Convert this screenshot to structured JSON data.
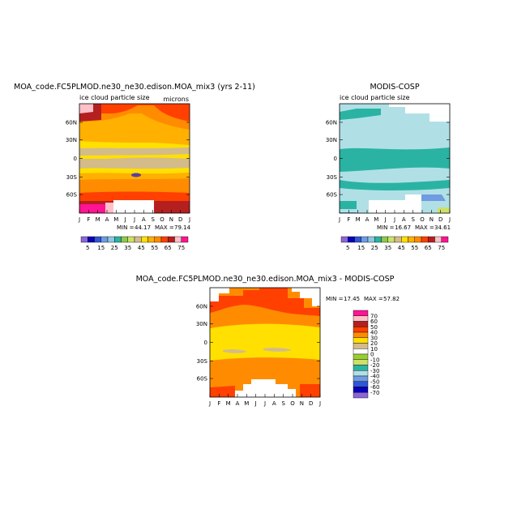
{
  "chart_data": [
    {
      "type": "heatmap",
      "title": "MOA_code.FC5PLMOD.ne30_ne30.edison.MOA_mix3 (yrs 2-11)",
      "subtitle_left": "ice cloud particle size",
      "units": "microns",
      "x_ticks": [
        "J",
        "F",
        "M",
        "A",
        "M",
        "J",
        "J",
        "A",
        "S",
        "O",
        "N",
        "D",
        "J"
      ],
      "y_ticks": [
        "60N",
        "30N",
        "0",
        "30S",
        "60S"
      ],
      "min_label": "MIN =",
      "min": "44.17",
      "max_label": "MAX =",
      "max": "79.14",
      "colorbar_labels": [
        "5",
        "15",
        "25",
        "35",
        "45",
        "55",
        "65",
        "75"
      ],
      "colorbar_colors": [
        "#8c66d9",
        "#0b00b5",
        "#3056d6",
        "#6f9be0",
        "#8fc6e0",
        "#2ab3a3",
        "#8fc84a",
        "#cde06a",
        "#d4bb8a",
        "#ffe000",
        "#ffb000",
        "#ff8c00",
        "#ff4000",
        "#b42020",
        "#ffc0c8",
        "#ff1493"
      ],
      "bands": [
        {
          "range": "65-75",
          "color": "#b42020"
        },
        {
          "range": "60-65",
          "color": "#ff4000"
        },
        {
          "range": "55-60",
          "color": "#ff8c00"
        },
        {
          "range": "50-55",
          "color": "#ffb000"
        },
        {
          "range": "45-50",
          "color": "#ffe000"
        },
        {
          "range": "40-45",
          "color": "#d4bb8a"
        }
      ]
    },
    {
      "type": "heatmap",
      "title": "MODIS-COSP",
      "subtitle_left": "ice cloud particle size",
      "x_ticks": [
        "J",
        "F",
        "M",
        "A",
        "M",
        "J",
        "J",
        "A",
        "S",
        "O",
        "N",
        "D",
        "J"
      ],
      "y_ticks": [
        "60N",
        "30N",
        "0",
        "30S",
        "60S"
      ],
      "min_label": "MIN =",
      "min": "16.67",
      "max_label": "MAX =",
      "max": "34.61",
      "colorbar_labels": [
        "5",
        "15",
        "25",
        "35",
        "45",
        "55",
        "65",
        "75"
      ],
      "colorbar_colors": [
        "#8c66d9",
        "#0b00b5",
        "#3056d6",
        "#6f9be0",
        "#8fc6e0",
        "#2ab3a3",
        "#8fc84a",
        "#cde06a",
        "#d4bb8a",
        "#ffe000",
        "#ffb000",
        "#ff8c00",
        "#ff4000",
        "#b42020",
        "#ffc0c8",
        "#ff1493"
      ],
      "bands": [
        {
          "range": "25-35",
          "color": "#2ab3a3"
        },
        {
          "range": "15-25",
          "color": "#b0e0e6"
        },
        {
          "range": "5-15",
          "color": "#6f9be0"
        }
      ]
    },
    {
      "type": "heatmap",
      "title": "MOA_code.FC5PLMOD.ne30_ne30.edison.MOA_mix3 - MODIS-COSP",
      "x_ticks": [
        "J",
        "F",
        "M",
        "A",
        "M",
        "J",
        "J",
        "A",
        "S",
        "O",
        "N",
        "D",
        "J"
      ],
      "y_ticks": [
        "60N",
        "30N",
        "0",
        "30S",
        "60S"
      ],
      "min_label": "MIN =",
      "min": "17.45",
      "max_label": "MAX =",
      "max": "57.82",
      "colorbar_labels": [
        "70",
        "60",
        "50",
        "40",
        "30",
        "20",
        "10",
        "0",
        "-10",
        "-20",
        "-30",
        "-40",
        "-50",
        "-60",
        "-70"
      ],
      "colorbar_colors": [
        "#ff1493",
        "#ffc0c8",
        "#b42020",
        "#ff4000",
        "#ff8c00",
        "#ffe000",
        "#d4bb8a",
        "#ffffff",
        "#9acd32",
        "#cde06a",
        "#2ab3a3",
        "#b0e0e6",
        "#6f9be0",
        "#3056d6",
        "#0b00b5",
        "#8c66d9"
      ],
      "bands": [
        {
          "range": "40-50",
          "color": "#ff4000"
        },
        {
          "range": "30-40",
          "color": "#ff8c00"
        },
        {
          "range": "20-30",
          "color": "#ffe000"
        },
        {
          "range": "10-20",
          "color": "#d4bb8a"
        }
      ]
    }
  ]
}
